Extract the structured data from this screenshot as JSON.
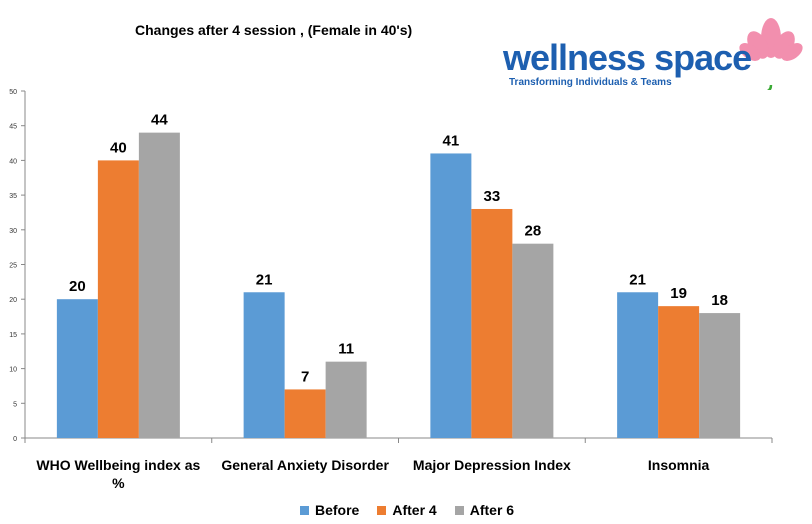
{
  "logo": {
    "name": "wellness space",
    "tagline": "Transforming Individuals & Teams"
  },
  "chart_data": {
    "type": "bar",
    "title": "Changes after 4 session , (Female in 40's)",
    "categories": [
      "WHO Wellbeing index as %",
      "General Anxiety Disorder",
      "Major Depression Index",
      "Insomnia"
    ],
    "series": [
      {
        "name": "Before",
        "color": "#5b9bd5",
        "values": [
          20,
          21,
          41,
          21
        ]
      },
      {
        "name": "After 4",
        "color": "#ed7d31",
        "values": [
          40,
          7,
          33,
          19
        ]
      },
      {
        "name": "After 6",
        "color": "#a5a5a5",
        "values": [
          44,
          11,
          28,
          18
        ]
      }
    ],
    "ylim": [
      0,
      50
    ],
    "yticks": [
      0,
      5,
      10,
      15,
      20,
      25,
      30,
      35,
      40,
      45,
      50
    ],
    "grid": false,
    "legend": "bottom"
  }
}
